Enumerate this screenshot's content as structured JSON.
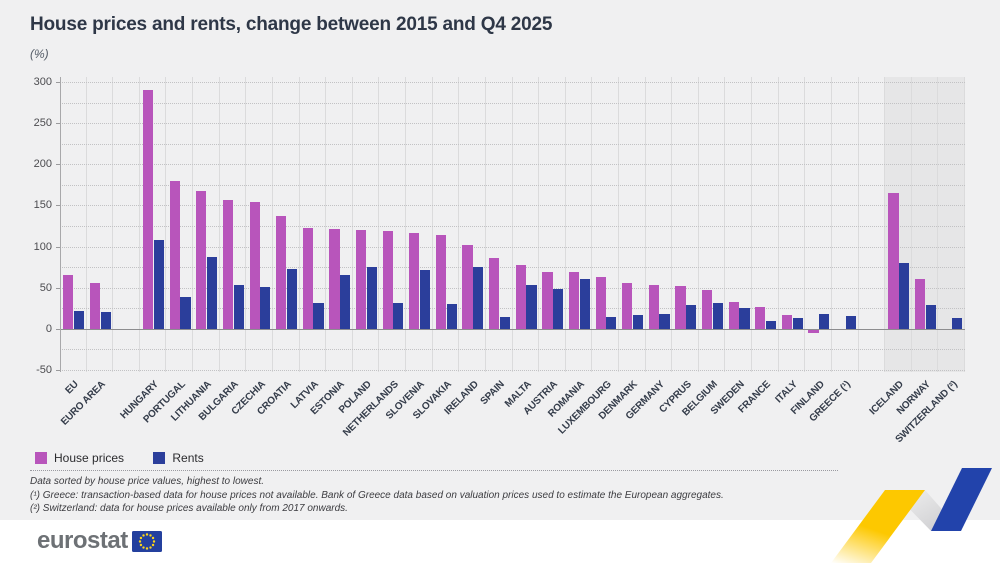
{
  "page": {
    "title": "House prices and rents, change between 2015 and Q4 2025",
    "unit_label": "(%)"
  },
  "notes": {
    "sort_note": "Data sorted by house price values, highest to lowest.",
    "footnote_1": "(¹) Greece: transaction-based data for house prices not available. Bank of Greece data based on valuation prices used to estimate the European aggregates.",
    "footnote_2": "(²) Switzerland: data for house prices available only from 2017 onwards."
  },
  "footer": {
    "logo_text": "eurostat"
  },
  "colors": {
    "background": "#f0f0f1",
    "house_prices": "#b855bb",
    "rents": "#2b3e9b",
    "shaded_band": "#e6e6e7",
    "title_text": "#2e3747"
  },
  "chart_data": {
    "type": "bar",
    "title": "House prices and rents, change between 2015 and Q4 2025",
    "ylabel": "(%)",
    "ylim": [
      -50,
      300
    ],
    "ytick_step": 50,
    "grid_minor_step": 25,
    "legend_position": "bottom-left",
    "series": [
      {
        "name": "House prices",
        "color": "#b855bb"
      },
      {
        "name": "Rents",
        "color": "#2b3e9b"
      }
    ],
    "categories": [
      {
        "label": "EU",
        "house": 65,
        "rent": 22
      },
      {
        "label": "EURO AREA",
        "house": 56,
        "rent": 20,
        "gap_after": true
      },
      {
        "label": "HUNGARY",
        "house": 290,
        "rent": 108
      },
      {
        "label": "PORTUGAL",
        "house": 180,
        "rent": 39
      },
      {
        "label": "LITHUANIA",
        "house": 167,
        "rent": 87
      },
      {
        "label": "BULGARIA",
        "house": 156,
        "rent": 53
      },
      {
        "label": "CZECHIA",
        "house": 154,
        "rent": 51
      },
      {
        "label": "CROATIA",
        "house": 137,
        "rent": 73
      },
      {
        "label": "LATVIA",
        "house": 123,
        "rent": 32
      },
      {
        "label": "ESTONIA",
        "house": 121,
        "rent": 65
      },
      {
        "label": "POLAND",
        "house": 120,
        "rent": 75
      },
      {
        "label": "NETHERLANDS",
        "house": 119,
        "rent": 31
      },
      {
        "label": "SLOVENIA",
        "house": 117,
        "rent": 72
      },
      {
        "label": "SLOVAKIA",
        "house": 114,
        "rent": 30
      },
      {
        "label": "IRELAND",
        "house": 102,
        "rent": 75
      },
      {
        "label": "SPAIN",
        "house": 86,
        "rent": 14
      },
      {
        "label": "MALTA",
        "house": 77,
        "rent": 53
      },
      {
        "label": "AUSTRIA",
        "house": 69,
        "rent": 49
      },
      {
        "label": "ROMANIA",
        "house": 69,
        "rent": 61
      },
      {
        "label": "LUXEMBOURG",
        "house": 63,
        "rent": 15
      },
      {
        "label": "DENMARK",
        "house": 56,
        "rent": 17
      },
      {
        "label": "GERMANY",
        "house": 53,
        "rent": 18
      },
      {
        "label": "CYPRUS",
        "house": 52,
        "rent": 29
      },
      {
        "label": "BELGIUM",
        "house": 47,
        "rent": 32
      },
      {
        "label": "SWEDEN",
        "house": 33,
        "rent": 25
      },
      {
        "label": "FRANCE",
        "house": 27,
        "rent": 9
      },
      {
        "label": "ITALY",
        "house": 17,
        "rent": 13
      },
      {
        "label": "FINLAND",
        "house": -4,
        "rent": 18
      },
      {
        "label": "GREECE (¹)",
        "house": null,
        "rent": 16,
        "gap_after": true
      },
      {
        "label": "ICELAND",
        "house": 165,
        "rent": 80,
        "shaded": true
      },
      {
        "label": "NORWAY",
        "house": 60,
        "rent": 29,
        "shaded": true
      },
      {
        "label": "SWITZERLAND (²)",
        "house": null,
        "rent": 13,
        "shaded": true
      }
    ]
  }
}
